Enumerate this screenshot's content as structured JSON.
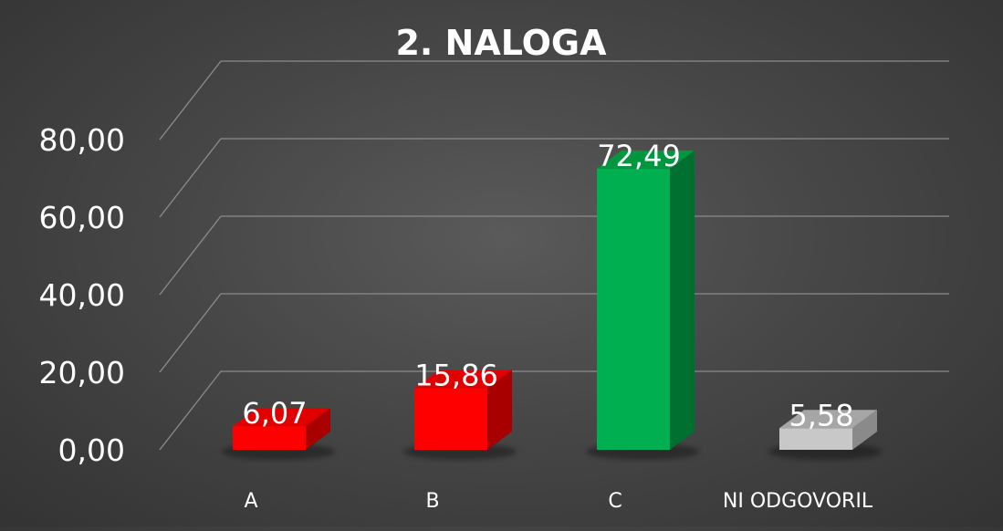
{
  "chart_data": {
    "type": "bar",
    "title": "2. NALOGA",
    "categories": [
      "A",
      "B",
      "C",
      "NI ODGOVORIL"
    ],
    "values": [
      6.07,
      15.86,
      72.49,
      5.58
    ],
    "value_labels": [
      "6,07",
      "15,86",
      "72,49",
      "5,58"
    ],
    "y_ticks": [
      "0,00",
      "20,00",
      "40,00",
      "60,00",
      "80,00"
    ],
    "ylim": [
      0,
      80
    ],
    "grid": true,
    "legend": "none",
    "style": "3d-column",
    "colors": {
      "A": {
        "front": "#ff0000",
        "top": "#e00000",
        "side": "#a80000"
      },
      "B": {
        "front": "#ff0000",
        "top": "#e00000",
        "side": "#a80000"
      },
      "C": {
        "front": "#00b050",
        "top": "#009640",
        "side": "#007030"
      },
      "NI ODGOVORIL": {
        "front": "#c8c8c8",
        "top": "#a6a6a6",
        "side": "#8a8a8a"
      }
    },
    "text_color": "#ffffff",
    "grid_color": "#8c8c8c"
  }
}
